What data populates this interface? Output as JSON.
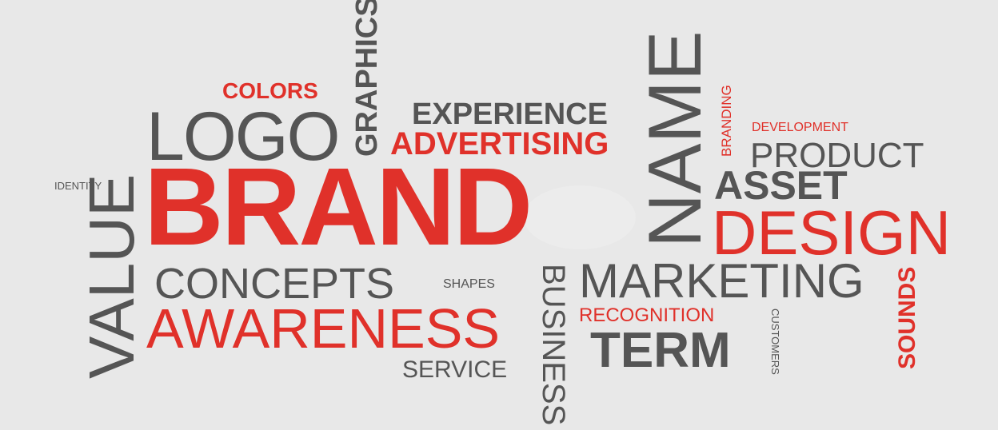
{
  "colors": {
    "red": "#e0312a",
    "gray": "#555555",
    "background": "#e8e8e8"
  },
  "words": {
    "brand": "BRAND",
    "logo": "LOGO",
    "colors": "COLORS",
    "graphics": "GRAPHICS",
    "experience": "EXPERIENCE",
    "advertising": "ADVERTISING",
    "name": "NAME",
    "branding": "BRANDING",
    "development": "DEVELOPMENT",
    "product": "PRODUCT",
    "asset": "ASSET",
    "design": "DESIGN",
    "identity": "IDENTITY",
    "value": "VALUE",
    "concepts": "CONCEPTS",
    "shapes": "SHAPES",
    "awareness": "AWARENESS",
    "service": "SERVICE",
    "business": "BUSINESS",
    "marketing": "MARKETING",
    "recognition": "RECOGNITION",
    "term": "TERM",
    "customers": "CUSTOMERS",
    "sounds": "SOUNDS"
  }
}
